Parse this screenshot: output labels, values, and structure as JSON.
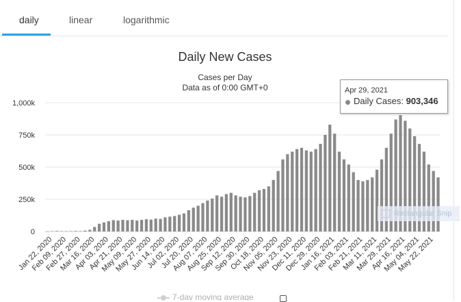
{
  "tabs": [
    {
      "label": "daily"
    },
    {
      "label": "linear"
    },
    {
      "label": "logarithmic"
    }
  ],
  "active_tab": "daily",
  "colors": {
    "accent": "#2aa3e3",
    "bar": "#8a8a8a"
  },
  "chart_data": {
    "type": "bar",
    "title": "Daily New Cases",
    "subtitle_1": "Cases per Day",
    "subtitle_2": "Data as of 0:00 GMT+0",
    "xlabel": "",
    "ylabel": "",
    "ylim": [
      0,
      1000000
    ],
    "y_ticks": [
      {
        "value": 0,
        "label": "0"
      },
      {
        "value": 250000,
        "label": "250k"
      },
      {
        "value": 500000,
        "label": "500k"
      },
      {
        "value": 750000,
        "label": "750k"
      },
      {
        "value": 1000000,
        "label": "1,000k"
      }
    ],
    "x_tick_labels": [
      "Jan 22, 2020",
      "Feb 09, 2020",
      "Feb 27, 2020",
      "Mar 16, 2020",
      "Apr 03, 2020",
      "Apr 21, 2020",
      "May 09, 2020",
      "May 27, 2020",
      "Jun 14, 2020",
      "Jul 02, 2020",
      "Jul 20, 2020",
      "Aug 07, 2020",
      "Aug 25, 2020",
      "Sep 12, 2020",
      "Sep 30, 2020",
      "Oct 18, 2020",
      "Nov 05, 2020",
      "Nov 23, 2020",
      "Dec 11, 2020",
      "Dec 29, 2020",
      "Jan 16, 2021",
      "Feb 03, 2021",
      "Feb 21, 2021",
      "Mar 11, 2021",
      "Mar 29, 2021",
      "Apr 16, 2021",
      "May 04, 2021",
      "May 22, 2021"
    ],
    "grid": true,
    "series": [
      {
        "name": "Daily Cases",
        "values": [
          600,
          2000,
          4000,
          2000,
          2000,
          3000,
          4000,
          3000,
          7000,
          13000,
          35000,
          60000,
          70000,
          80000,
          88000,
          85000,
          90000,
          87000,
          90000,
          85000,
          90000,
          95000,
          92000,
          100000,
          98000,
          110000,
          115000,
          120000,
          130000,
          140000,
          165000,
          185000,
          200000,
          220000,
          240000,
          255000,
          280000,
          270000,
          290000,
          300000,
          280000,
          270000,
          265000,
          275000,
          300000,
          320000,
          330000,
          350000,
          400000,
          470000,
          560000,
          600000,
          620000,
          640000,
          650000,
          630000,
          620000,
          640000,
          680000,
          750000,
          830000,
          760000,
          620000,
          560000,
          520000,
          460000,
          400000,
          390000,
          400000,
          420000,
          480000,
          560000,
          650000,
          760000,
          870000,
          903346,
          860000,
          800000,
          740000,
          680000,
          620000,
          520000,
          470000,
          420000
        ]
      }
    ]
  },
  "tooltip": {
    "date": "Apr 29, 2021",
    "series": "Daily Cases:",
    "value": "903,346"
  },
  "watermark": {
    "label": "Rectangular Snip"
  },
  "legend": {
    "label": "7-day moving average"
  }
}
